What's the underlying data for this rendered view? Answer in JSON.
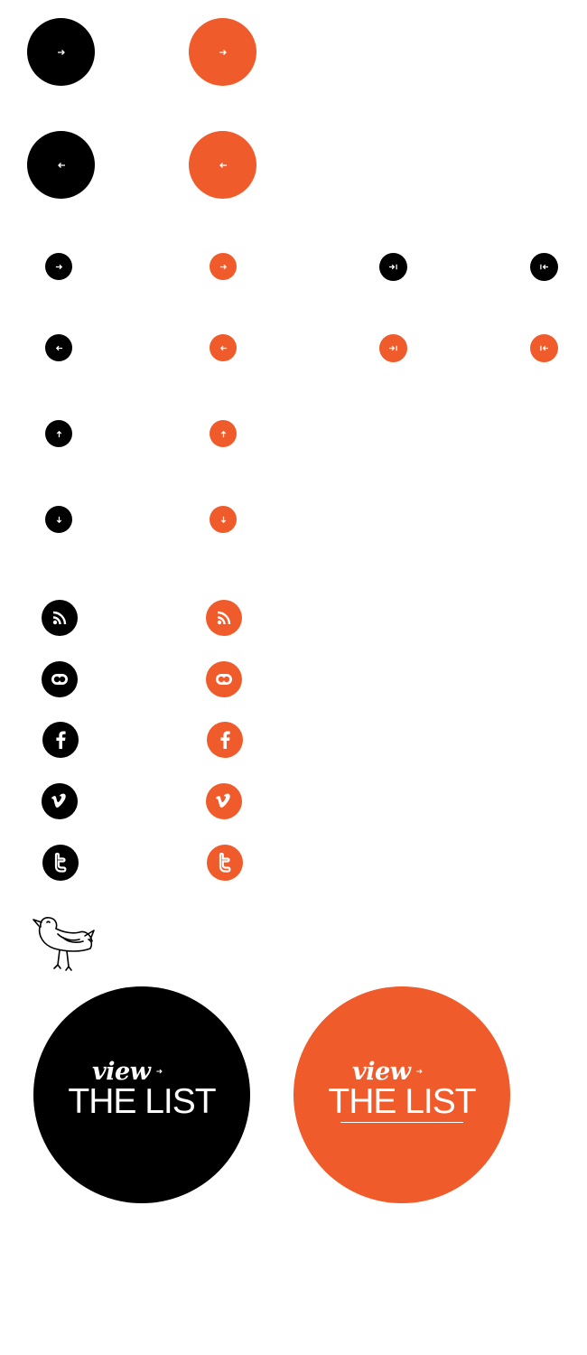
{
  "colors": {
    "black": "#000000",
    "orange": "#f05b2b",
    "white": "#ffffff"
  },
  "arrow_buttons_large": [
    {
      "icon": "arrow-right-icon",
      "variant": "black"
    },
    {
      "icon": "arrow-right-icon",
      "variant": "orange"
    },
    {
      "icon": "arrow-left-icon",
      "variant": "black"
    },
    {
      "icon": "arrow-left-icon",
      "variant": "orange"
    }
  ],
  "arrow_buttons_small": [
    {
      "icon": "arrow-right-icon",
      "variant": "black"
    },
    {
      "icon": "arrow-right-icon",
      "variant": "orange"
    },
    {
      "icon": "skip-to-end-icon",
      "variant": "black"
    },
    {
      "icon": "skip-to-start-icon",
      "variant": "black"
    },
    {
      "icon": "arrow-left-icon",
      "variant": "black"
    },
    {
      "icon": "arrow-left-icon",
      "variant": "orange"
    },
    {
      "icon": "skip-to-end-icon",
      "variant": "orange"
    },
    {
      "icon": "skip-to-start-icon",
      "variant": "orange"
    },
    {
      "icon": "arrow-up-icon",
      "variant": "black"
    },
    {
      "icon": "arrow-up-icon",
      "variant": "orange"
    },
    {
      "icon": "arrow-down-icon",
      "variant": "black"
    },
    {
      "icon": "arrow-down-icon",
      "variant": "orange"
    }
  ],
  "social_buttons": [
    {
      "icon": "rss-icon"
    },
    {
      "icon": "flickr-icon"
    },
    {
      "icon": "facebook-icon"
    },
    {
      "icon": "vimeo-icon"
    },
    {
      "icon": "twitter-icon"
    }
  ],
  "mascot": {
    "icon": "bird-icon"
  },
  "view_list": {
    "view_text": "view",
    "list_text": "THE LIST"
  }
}
